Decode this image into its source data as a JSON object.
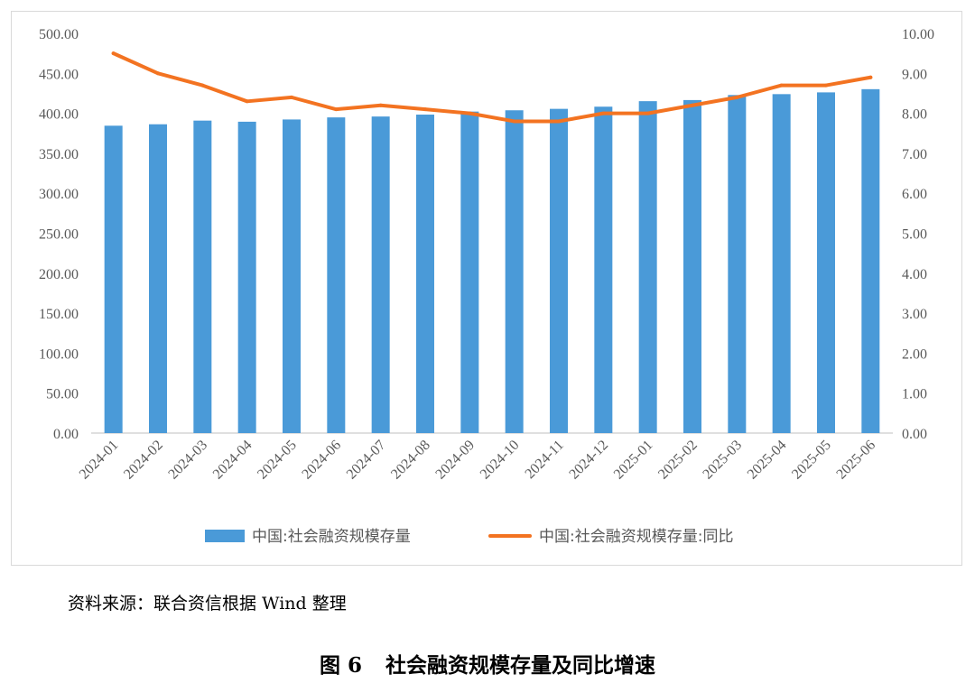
{
  "chart_data": {
    "type": "bar+line",
    "categories": [
      "2024-01",
      "2024-02",
      "2024-03",
      "2024-04",
      "2024-05",
      "2024-06",
      "2024-07",
      "2024-08",
      "2024-09",
      "2024-10",
      "2024-11",
      "2024-12",
      "2025-01",
      "2025-02",
      "2025-03",
      "2025-04",
      "2025-05",
      "2025-06"
    ],
    "series": [
      {
        "name": "中国:社会融资规模存量",
        "type": "bar",
        "axis": "left",
        "color": "#4a9ad8",
        "values": [
          384.5,
          386.3,
          390.9,
          389.5,
          392.3,
          394.9,
          396.0,
          398.4,
          402.2,
          403.8,
          405.6,
          408.3,
          415.2,
          416.6,
          422.9,
          424.0,
          426.2,
          430.2
        ]
      },
      {
        "name": "中国:社会融资规模存量:同比",
        "type": "line",
        "axis": "right",
        "color": "#f37321",
        "values": [
          9.5,
          9.0,
          8.7,
          8.3,
          8.4,
          8.1,
          8.2,
          8.1,
          8.0,
          7.8,
          7.8,
          8.0,
          8.0,
          8.2,
          8.4,
          8.7,
          8.7,
          8.9
        ]
      }
    ],
    "y_left": {
      "min": 0,
      "max": 500,
      "ticks": [
        "0.00",
        "50.00",
        "100.00",
        "150.00",
        "200.00",
        "250.00",
        "300.00",
        "350.00",
        "400.00",
        "450.00",
        "500.00"
      ]
    },
    "y_right": {
      "min": 0,
      "max": 10,
      "ticks": [
        "0.00",
        "1.00",
        "2.00",
        "3.00",
        "4.00",
        "5.00",
        "6.00",
        "7.00",
        "8.00",
        "9.00",
        "10.00"
      ]
    },
    "grid": false,
    "legend_position": "bottom-center"
  },
  "source_note": "资料来源：联合资信根据 Wind 整理",
  "figure_label": "图 6",
  "figure_title": "社会融资规模存量及同比增速"
}
